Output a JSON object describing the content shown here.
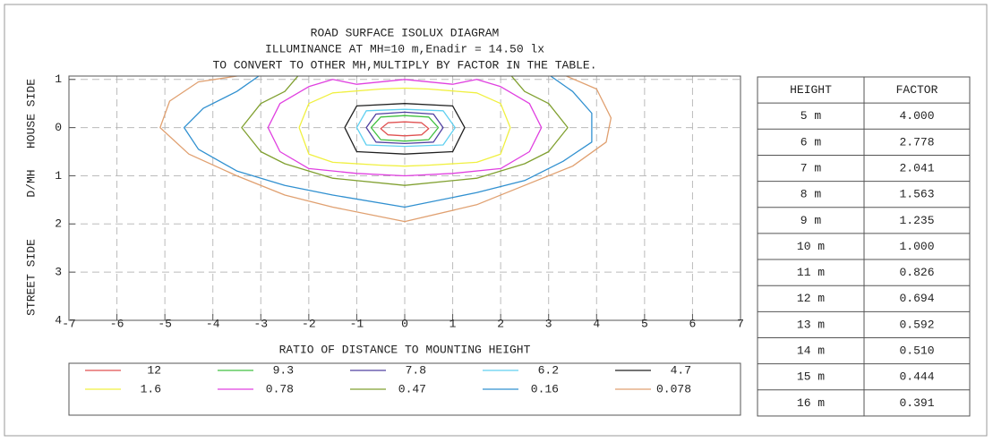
{
  "chart_data": {
    "type": "contour",
    "title": "ROAD SURFACE ISOLUX DIAGRAM",
    "subtitle": "ILLUMINANCE AT MH=10 m,Enadir  = 14.50 lx",
    "note": "TO CONVERT TO OTHER MH,MULTIPLY BY FACTOR IN THE TABLE.",
    "x_label": "RATIO OF DISTANCE TO MOUNTING HEIGHT",
    "y_labels": [
      "HOUSE SIDE",
      "D/MH",
      "STREET SIDE"
    ],
    "xlim": [
      -7,
      7
    ],
    "xticks": [
      -7,
      -6,
      -5,
      -4,
      -3,
      -2,
      -1,
      0,
      1,
      2,
      3,
      4,
      5,
      6,
      7
    ],
    "ylim": [
      -1.07,
      4
    ],
    "y_inverted": true,
    "yticks": [
      {
        "value": -1,
        "label": "1"
      },
      0,
      1,
      2,
      3,
      4
    ],
    "grid": true,
    "series": [
      {
        "name": "12",
        "color": "#e05050",
        "x": [
          -0.5,
          -0.35,
          0,
          0.35,
          0.5,
          0.35,
          0,
          -0.35
        ],
        "y": [
          0.02,
          -0.1,
          -0.12,
          -0.1,
          0.02,
          0.15,
          0.17,
          0.15
        ]
      },
      {
        "name": "9.3",
        "color": "#40c040",
        "x": [
          -0.7,
          -0.5,
          0,
          0.5,
          0.7,
          0.5,
          0,
          -0.5
        ],
        "y": [
          0,
          -0.22,
          -0.25,
          -0.22,
          0,
          0.25,
          0.28,
          0.25
        ]
      },
      {
        "name": "7.8",
        "color": "#5040a0",
        "x": [
          -0.8,
          -0.6,
          0,
          0.6,
          0.8,
          0.6,
          0,
          -0.6
        ],
        "y": [
          0,
          -0.28,
          -0.32,
          -0.28,
          0,
          0.3,
          0.33,
          0.3
        ]
      },
      {
        "name": "6.2",
        "color": "#60d0f0",
        "x": [
          -1.0,
          -0.8,
          0,
          0.8,
          1.05,
          0.8,
          0,
          -0.8
        ],
        "y": [
          0,
          -0.35,
          -0.38,
          -0.35,
          0,
          0.36,
          0.39,
          0.36
        ]
      },
      {
        "name": "4.7",
        "color": "#202020",
        "x": [
          -1.25,
          -1.0,
          0,
          1.0,
          1.25,
          1.0,
          0,
          -1.0
        ],
        "y": [
          0,
          -0.45,
          -0.5,
          -0.45,
          0,
          0.5,
          0.55,
          0.5
        ]
      },
      {
        "name": "1.6",
        "color": "#f0f040",
        "x": [
          -2.2,
          -2.0,
          -1.5,
          -0.5,
          0,
          0.5,
          1.5,
          2.0,
          2.2,
          2.0,
          1.5,
          0.5,
          0,
          -0.5,
          -1.5,
          -2.0
        ],
        "y": [
          0,
          -0.5,
          -0.72,
          -0.8,
          -0.82,
          -0.8,
          -0.72,
          -0.5,
          0,
          0.55,
          0.72,
          0.78,
          0.8,
          0.78,
          0.72,
          0.55
        ]
      },
      {
        "name": "0.78",
        "color": "#e040e0",
        "x": [
          -2.85,
          -2.6,
          -2.0,
          -1.5,
          -1,
          0,
          1,
          1.5,
          2.0,
          2.6,
          2.85,
          2.6,
          2,
          1,
          0,
          -1,
          -2,
          -2.6
        ],
        "y": [
          0,
          -0.5,
          -0.85,
          -1.0,
          -0.9,
          -1.0,
          -0.9,
          -1.0,
          -0.85,
          -0.5,
          0,
          0.5,
          0.85,
          0.95,
          1.0,
          0.95,
          0.85,
          0.5
        ]
      },
      {
        "name": "0.47",
        "color": "#80a030",
        "x": [
          -3.4,
          -3,
          -2.5,
          -2.2,
          -1.5,
          0,
          1.5,
          2.2,
          2.5,
          3,
          3.4,
          3,
          2.5,
          1.5,
          0,
          -1.5,
          -2.5,
          -3
        ],
        "y": [
          0,
          -0.5,
          -0.75,
          -1.1,
          -1.1,
          -1.1,
          -1.1,
          -1.1,
          -0.75,
          -0.5,
          0,
          0.5,
          0.75,
          1.05,
          1.2,
          1.05,
          0.75,
          0.5
        ]
      },
      {
        "name": "0.16",
        "color": "#3090d0",
        "x": [
          -4.6,
          -4.2,
          -3.5,
          -3.0,
          3.0,
          3.5,
          3.9,
          3.9,
          3.3,
          2.5,
          1.5,
          0,
          -1.5,
          -2.5,
          -3.5,
          -4.3
        ],
        "y": [
          0,
          -0.4,
          -0.75,
          -1.1,
          -1.1,
          -0.75,
          -0.3,
          0.3,
          0.7,
          1.1,
          1.35,
          1.65,
          1.4,
          1.2,
          0.9,
          0.45
        ]
      },
      {
        "name": "0.078",
        "color": "#e0a070",
        "x": [
          -5.1,
          -4.9,
          -4.3,
          -3.3,
          3.3,
          4.0,
          4.3,
          4.2,
          3.5,
          2.5,
          1.5,
          0,
          -1.5,
          -2.5,
          -3.5,
          -4.5
        ],
        "y": [
          0,
          -0.55,
          -0.95,
          -1.1,
          -1.1,
          -0.8,
          -0.2,
          0.3,
          0.8,
          1.2,
          1.6,
          1.95,
          1.65,
          1.4,
          1.0,
          0.55
        ]
      }
    ]
  },
  "table": {
    "header": [
      "HEIGHT",
      "FACTOR"
    ],
    "rows": [
      [
        "5 m",
        "4.000"
      ],
      [
        "6 m",
        "2.778"
      ],
      [
        "7 m",
        "2.041"
      ],
      [
        "8 m",
        "1.563"
      ],
      [
        "9 m",
        "1.235"
      ],
      [
        "10 m",
        "1.000"
      ],
      [
        "11 m",
        "0.826"
      ],
      [
        "12 m",
        "0.694"
      ],
      [
        "13 m",
        "0.592"
      ],
      [
        "14 m",
        "0.510"
      ],
      [
        "15 m",
        "0.444"
      ],
      [
        "16 m",
        "0.391"
      ]
    ]
  }
}
